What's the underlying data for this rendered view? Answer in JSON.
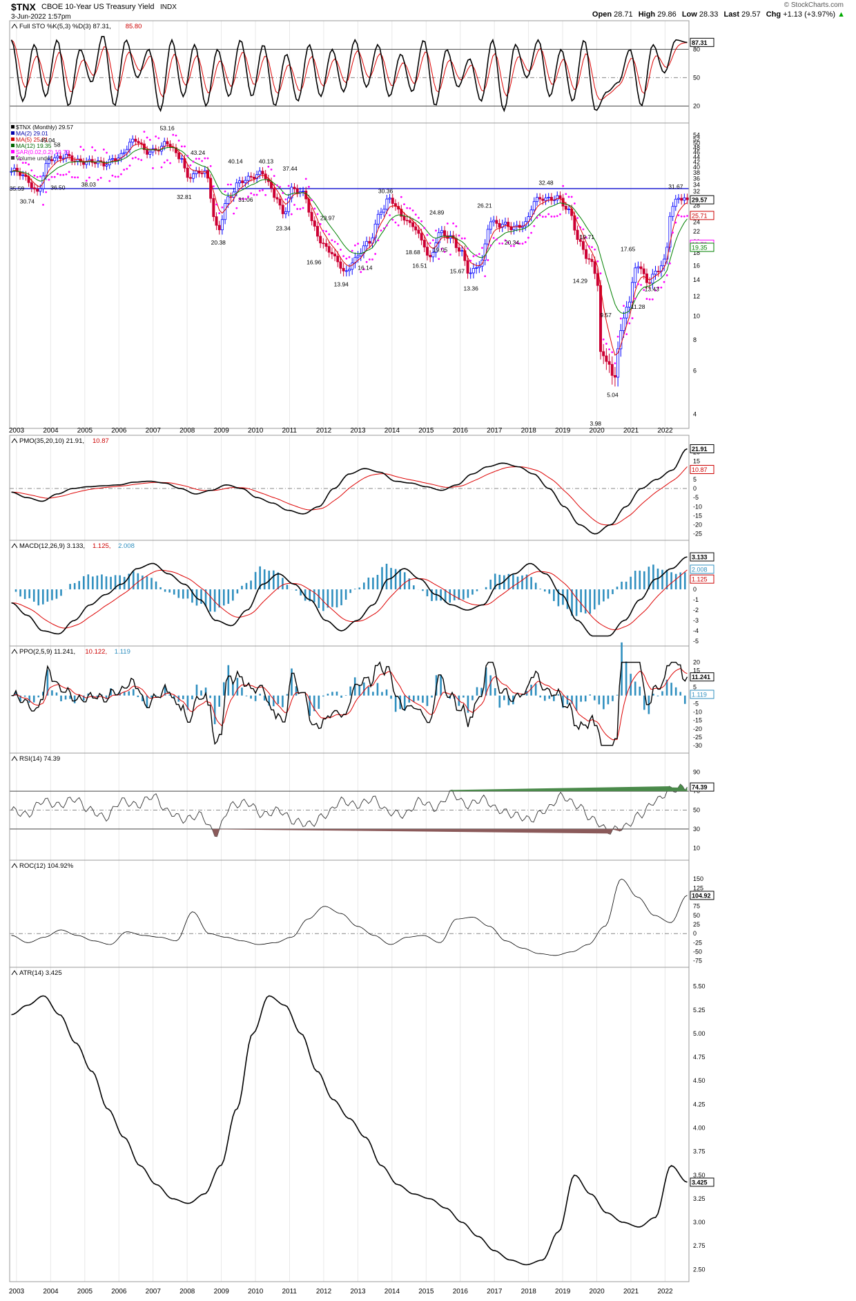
{
  "header": {
    "symbol": "$TNX",
    "name": "CBOE 10-Year US Treasury Yield",
    "exchange": "INDX",
    "date": "3-Jun-2022 1:57pm",
    "watermark": "© StockCharts.com",
    "ohlc": [
      {
        "label": "Open",
        "value": "28.71"
      },
      {
        "label": "High",
        "value": "29.86"
      },
      {
        "label": "Low",
        "value": "28.33"
      },
      {
        "label": "Last",
        "value": "29.57"
      },
      {
        "label": "Chg",
        "value": "+1.13 (+3.97%)"
      }
    ],
    "chg_arrow": "▲"
  },
  "colors": {
    "up": "#0000ff",
    "down": "#cc0033",
    "black": "#000000",
    "red": "#dd0000",
    "green": "#008000",
    "sar": "#ff00ff",
    "hist": "#2f8fbf",
    "rsi_fill": "#8b5a5a",
    "rsi_fill_hi": "#4a8a4a",
    "ref": "#1e1ed2"
  },
  "x_axis": {
    "years": [
      "2003",
      "2004",
      "2005",
      "2006",
      "2007",
      "2008",
      "2009",
      "2010",
      "2011",
      "2012",
      "2013",
      "2014",
      "2015",
      "2016",
      "2017",
      "2018",
      "2019",
      "2020",
      "2021",
      "2022"
    ],
    "start": 2002.8,
    "end": 2022.7
  },
  "panels": [
    {
      "id": "sto",
      "legend": [
        {
          "text": "Full STO %K(5,3) %D(3) 87.31,",
          "color": "#000000"
        },
        {
          "text": " 85.80",
          "color": "#cc0000"
        }
      ],
      "ylim": [
        5,
        100
      ],
      "ticks": [
        "80",
        "50",
        "20"
      ],
      "tick_values": [
        80,
        50,
        20
      ],
      "hlines": [
        80,
        20
      ],
      "dashed": [
        50
      ],
      "last": [
        {
          "value": "87.31",
          "color": "#000000"
        }
      ]
    },
    {
      "id": "price",
      "legend": [
        {
          "text": "$TNX (Monthly) 29.57",
          "color": "#000000"
        },
        {
          "text": "MA(2) 29.01",
          "color": "#0000aa"
        },
        {
          "text": "MA(5) 25.71",
          "color": "#cc0000"
        },
        {
          "text": "MA(12) 19.35",
          "color": "#006600"
        },
        {
          "text": "SAR(0.02,0.2) 19.79",
          "color": "#ff00ff"
        },
        {
          "text": "Volume undef",
          "color": "#333333"
        }
      ],
      "ticks": [
        "54",
        "52",
        "50",
        "48",
        "46",
        "44",
        "42",
        "40",
        "38",
        "36",
        "34",
        "32",
        "30",
        "28",
        "26",
        "24",
        "22",
        "20",
        "18",
        "16",
        "14",
        "12",
        "10",
        "8",
        "6",
        "4"
      ],
      "hline_value": 32.81,
      "last": [
        {
          "value": "29.57",
          "color": "#000000"
        },
        {
          "value": "25.71",
          "color": "#cc0000"
        },
        {
          "value": "19.79",
          "color": "#ff00ff"
        },
        {
          "value": "19.35",
          "color": "#008000"
        }
      ],
      "annotations": [
        {
          "text": "35.59",
          "x": 2003.0,
          "y": 32.2
        },
        {
          "text": "30.74",
          "x": 2003.3,
          "y": 28.6
        },
        {
          "text": "49.04",
          "x": 2003.9,
          "y": 50.5
        },
        {
          "text": "58",
          "x": 2004.3,
          "y": 48.5
        },
        {
          "text": "36.50",
          "x": 2004.2,
          "y": 32.5
        },
        {
          "text": "38.03",
          "x": 2005.1,
          "y": 33.5
        },
        {
          "text": "53.16",
          "x": 2007.4,
          "y": 56.5
        },
        {
          "text": "43.24",
          "x": 2008.3,
          "y": 45.0
        },
        {
          "text": "32.81",
          "x": 2007.9,
          "y": 29.8
        },
        {
          "text": "40.14",
          "x": 2009.4,
          "y": 41.5
        },
        {
          "text": "20.38",
          "x": 2008.9,
          "y": 19.5
        },
        {
          "text": "31.06",
          "x": 2009.7,
          "y": 29.0
        },
        {
          "text": "40.13",
          "x": 2010.3,
          "y": 41.5
        },
        {
          "text": "37.44",
          "x": 2011.0,
          "y": 38.8
        },
        {
          "text": "23.34",
          "x": 2010.8,
          "y": 22.2
        },
        {
          "text": "23.97",
          "x": 2012.1,
          "y": 24.5
        },
        {
          "text": "16.96",
          "x": 2011.7,
          "y": 16.2
        },
        {
          "text": "13.94",
          "x": 2012.5,
          "y": 13.2
        },
        {
          "text": "30.36",
          "x": 2013.8,
          "y": 31.5
        },
        {
          "text": "16.14",
          "x": 2013.2,
          "y": 15.4
        },
        {
          "text": "24.89",
          "x": 2015.3,
          "y": 25.8
        },
        {
          "text": "18.68",
          "x": 2014.6,
          "y": 17.8
        },
        {
          "text": "19.05",
          "x": 2015.4,
          "y": 18.2
        },
        {
          "text": "16.51",
          "x": 2014.8,
          "y": 15.7
        },
        {
          "text": "15.67",
          "x": 2015.9,
          "y": 14.9
        },
        {
          "text": "13.36",
          "x": 2016.3,
          "y": 12.7
        },
        {
          "text": "26.21",
          "x": 2016.7,
          "y": 27.5
        },
        {
          "text": "20.34",
          "x": 2017.5,
          "y": 19.5
        },
        {
          "text": "32.48",
          "x": 2018.5,
          "y": 34.0
        },
        {
          "text": "19.71",
          "x": 2019.7,
          "y": 20.5
        },
        {
          "text": "14.29",
          "x": 2019.5,
          "y": 13.6
        },
        {
          "text": "17.65",
          "x": 2020.9,
          "y": 18.3
        },
        {
          "text": "13.43",
          "x": 2021.6,
          "y": 12.6
        },
        {
          "text": "11.28",
          "x": 2021.2,
          "y": 10.7
        },
        {
          "text": "9.57",
          "x": 2020.3,
          "y": 9.9
        },
        {
          "text": "5.04",
          "x": 2020.5,
          "y": 4.7
        },
        {
          "text": "3.98",
          "x": 2020.0,
          "y": 3.6
        },
        {
          "text": "31.67",
          "x": 2022.3,
          "y": 32.8
        }
      ]
    },
    {
      "id": "pmo",
      "legend": [
        {
          "text": "PMO(35,20,10) 21.91,",
          "color": "#000000"
        },
        {
          "text": " 10.87",
          "color": "#cc0000"
        }
      ],
      "ylim": [
        -27,
        24
      ],
      "ticks": [
        "20",
        "15",
        "10",
        "5",
        "0",
        "-5",
        "-10",
        "-15",
        "-20",
        "-25"
      ],
      "tick_values": [
        20,
        15,
        10,
        5,
        0,
        -5,
        -10,
        -15,
        -20,
        -25
      ],
      "dashed": [
        0
      ],
      "last": [
        {
          "value": "21.91",
          "color": "#000000"
        },
        {
          "value": "10.87",
          "color": "#cc0000"
        }
      ]
    },
    {
      "id": "macd",
      "legend": [
        {
          "text": "MACD(12,26,9) 3.133,",
          "color": "#000000"
        },
        {
          "text": " 1.125,",
          "color": "#cc0000"
        },
        {
          "text": " 2.008",
          "color": "#2f8fbf"
        }
      ],
      "ylim": [
        -5.2,
        3.8
      ],
      "ticks": [
        "3",
        "2",
        "1",
        "0",
        "-1",
        "-2",
        "-3",
        "-4",
        "-5"
      ],
      "tick_values": [
        3,
        2,
        1,
        0,
        -1,
        -2,
        -3,
        -4,
        -5
      ],
      "dashed": [],
      "last": [
        {
          "value": "3.133",
          "color": "#000000"
        },
        {
          "value": "2.008",
          "color": "#2f8fbf"
        },
        {
          "value": "1.125",
          "color": "#cc0000"
        }
      ]
    },
    {
      "id": "ppo",
      "legend": [
        {
          "text": "PPO(2,5,9) 11.241,",
          "color": "#000000"
        },
        {
          "text": " 10.122,",
          "color": "#cc0000"
        },
        {
          "text": " 1.119",
          "color": "#2f8fbf"
        }
      ],
      "ylim": [
        -33,
        24
      ],
      "ticks": [
        "20",
        "15",
        "10",
        "5",
        "0",
        "-5",
        "-10",
        "-15",
        "-20",
        "-25",
        "-30"
      ],
      "tick_values": [
        20,
        15,
        10,
        5,
        0,
        -5,
        -10,
        -15,
        -20,
        -25,
        -30
      ],
      "dashed": [],
      "last": [
        {
          "value": "11.241",
          "color": "#000000"
        },
        {
          "value": "1.119",
          "color": "#2f8fbf"
        }
      ]
    },
    {
      "id": "rsi",
      "legend": [
        {
          "text": "RSI(14) 74.39",
          "color": "#000000"
        }
      ],
      "ylim": [
        0,
        100
      ],
      "ticks": [
        "90",
        "70",
        "50",
        "30",
        "10"
      ],
      "tick_values": [
        90,
        70,
        50,
        30,
        10
      ],
      "hlines": [
        70,
        30
      ],
      "dashed": [
        50
      ],
      "last": [
        {
          "value": "74.39",
          "color": "#000000"
        }
      ]
    },
    {
      "id": "roc",
      "legend": [
        {
          "text": "ROC(12) 104.92%",
          "color": "#000000"
        }
      ],
      "ylim": [
        -85,
        175
      ],
      "ticks": [
        "150",
        "125",
        "100",
        "75",
        "50",
        "25",
        "0",
        "-25",
        "-50",
        "-75"
      ],
      "tick_values": [
        150,
        125,
        100,
        75,
        50,
        25,
        0,
        -25,
        -50,
        -75
      ],
      "dashed": [
        0
      ],
      "last": [
        {
          "value": "104.92",
          "color": "#000000"
        }
      ]
    },
    {
      "id": "atr",
      "legend": [
        {
          "text": "ATR(14) 3.425",
          "color": "#000000"
        }
      ],
      "ylim": [
        2.4,
        5.6
      ],
      "ticks": [
        "5.50",
        "5.25",
        "5.00",
        "4.75",
        "4.50",
        "4.25",
        "4.00",
        "3.75",
        "3.50",
        "3.25",
        "3.00",
        "2.75",
        "2.50"
      ],
      "tick_values": [
        5.5,
        5.25,
        5,
        4.75,
        4.5,
        4.25,
        4,
        3.75,
        3.5,
        3.25,
        3,
        2.75,
        2.5
      ],
      "last": [
        {
          "value": "3.425",
          "color": "#000000"
        }
      ]
    }
  ],
  "chart_data": {
    "type": "line",
    "title": "$TNX CBOE 10-Year US Treasury Yield INDX",
    "frequency": "Monthly",
    "series": [
      {
        "name": "$TNX",
        "x": [
          2002.9,
          2003.3,
          2003.6,
          2004.0,
          2004.4,
          2004.8,
          2005.2,
          2005.6,
          2005.9,
          2006.5,
          2006.8,
          2007.2,
          2007.4,
          2007.8,
          2008.0,
          2008.5,
          2008.9,
          2009.2,
          2009.5,
          2009.8,
          2010.2,
          2010.6,
          2010.8,
          2011.1,
          2011.4,
          2011.7,
          2012.0,
          2012.4,
          2012.6,
          2012.9,
          2013.3,
          2013.7,
          2013.9,
          2014.3,
          2014.6,
          2014.9,
          2015.1,
          2015.4,
          2015.7,
          2016.0,
          2016.3,
          2016.6,
          2016.9,
          2017.2,
          2017.5,
          2017.9,
          2018.2,
          2018.5,
          2018.8,
          2019.2,
          2019.5,
          2019.8,
          2020.0,
          2020.1,
          2020.3,
          2020.5,
          2020.7,
          2020.9,
          2021.2,
          2021.5,
          2021.7,
          2022.0,
          2022.2,
          2022.4
        ],
        "y": [
          38.5,
          36.0,
          32.0,
          43.0,
          45.0,
          41.5,
          43.0,
          40.5,
          44.0,
          51.0,
          47.0,
          47.0,
          50.0,
          45.0,
          36.0,
          39.0,
          21.5,
          30.0,
          35.0,
          35.5,
          38.5,
          30.0,
          25.5,
          33.5,
          31.0,
          23.0,
          19.5,
          16.5,
          15.0,
          17.0,
          19.5,
          27.0,
          29.5,
          25.5,
          23.5,
          19.5,
          17.0,
          22.0,
          20.5,
          18.5,
          15.0,
          16.0,
          24.5,
          23.5,
          22.5,
          24.0,
          29.0,
          30.0,
          30.5,
          26.0,
          20.0,
          16.5,
          14.5,
          7.0,
          6.8,
          5.5,
          8.5,
          11.0,
          16.5,
          13.5,
          14.7,
          17.0,
          28.0,
          29.57
        ]
      },
      {
        "name": "Full STO %K",
        "values": [
          90,
          25,
          85,
          30,
          90,
          20,
          80,
          45,
          95,
          20,
          90,
          50,
          80,
          15,
          90,
          30,
          85,
          20,
          80,
          30,
          90,
          30,
          85,
          20,
          75,
          25,
          85,
          30,
          80,
          35,
          90,
          40,
          85,
          30,
          75,
          35,
          90,
          20,
          80,
          40,
          70,
          25,
          90,
          15,
          85,
          50,
          90,
          30,
          80,
          25,
          90,
          15,
          35,
          45,
          80,
          20,
          85,
          55,
          90,
          87.31
        ]
      },
      {
        "name": "PMO",
        "values": [
          -2,
          -5,
          -7,
          -3,
          0,
          1,
          1.5,
          2,
          3.5,
          4,
          3,
          0,
          -3,
          -1,
          2,
          0,
          -5,
          -8,
          -12,
          -14,
          -10,
          0,
          8,
          11,
          9,
          4,
          3,
          1,
          -1,
          2,
          8,
          12,
          14,
          12,
          8,
          0,
          -10,
          -20,
          -25,
          -20,
          -10,
          0,
          5,
          10,
          21.91
        ]
      },
      {
        "name": "MACD",
        "values": [
          -1.3,
          -2.5,
          -4,
          -4.3,
          -3,
          -1.5,
          -0.5,
          0.5,
          2,
          2.5,
          1.5,
          0.5,
          -1,
          -3,
          -3.5,
          -2,
          0.5,
          1.5,
          0.5,
          -1,
          -3,
          -4,
          -3,
          -1.5,
          1,
          2,
          1,
          -0.5,
          -1.5,
          -2,
          -1.5,
          0.5,
          1.5,
          2.5,
          1.5,
          -0.5,
          -3,
          -4.5,
          -4.5,
          -3,
          -1,
          1,
          2,
          3.133
        ]
      },
      {
        "name": "RSI",
        "values": [
          50,
          45,
          60,
          55,
          62,
          50,
          42,
          60,
          55,
          65,
          48,
          40,
          45,
          25,
          55,
          58,
          45,
          50,
          38,
          35,
          45,
          60,
          55,
          62,
          48,
          45,
          60,
          52,
          68,
          55,
          62,
          50,
          45,
          40,
          50,
          65,
          55,
          40,
          28,
          32,
          45,
          60,
          72,
          74.39
        ]
      },
      {
        "name": "ROC",
        "values": [
          -5,
          -25,
          -10,
          10,
          -5,
          -20,
          -30,
          5,
          -5,
          -10,
          -20,
          60,
          0,
          -10,
          -20,
          -30,
          -25,
          -10,
          40,
          75,
          55,
          20,
          -5,
          -30,
          -10,
          -5,
          -25,
          40,
          45,
          20,
          -20,
          -40,
          -55,
          -60,
          -50,
          -30,
          20,
          150,
          100,
          50,
          30,
          104.92
        ]
      },
      {
        "name": "ATR",
        "values": [
          5.2,
          5.3,
          5.4,
          5.2,
          4.9,
          4.6,
          4.2,
          3.9,
          3.6,
          3.4,
          3.25,
          3.2,
          3.3,
          3.6,
          4.2,
          5.0,
          5.4,
          5.3,
          5.0,
          4.6,
          4.3,
          4.1,
          3.9,
          3.6,
          3.4,
          3.3,
          3.25,
          3.15,
          3.0,
          2.85,
          2.7,
          2.6,
          2.55,
          2.6,
          2.9,
          3.5,
          3.3,
          3.1,
          3.0,
          2.95,
          3.05,
          3.6,
          3.425
        ]
      }
    ]
  }
}
